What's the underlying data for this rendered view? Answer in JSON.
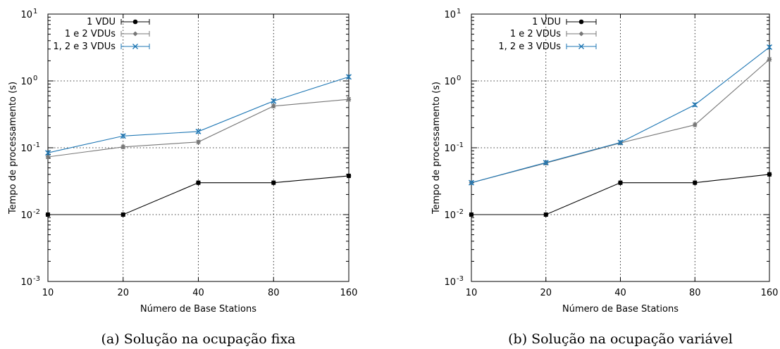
{
  "chart_data": [
    {
      "type": "line",
      "caption": "(a)  Solução na ocupação fixa",
      "xlabel": "Número de Base Stations",
      "ylabel": "Tempo de processamento (s)",
      "x_scale": "categorical",
      "y_scale": "log",
      "ylim": [
        0.001,
        10
      ],
      "grid": true,
      "legend_position": "top-left",
      "categories": [
        "10",
        "20",
        "40",
        "80",
        "160"
      ],
      "y_ticks": [
        {
          "value": 0.001,
          "base": "10",
          "exp": "-3"
        },
        {
          "value": 0.01,
          "base": "10",
          "exp": "-2"
        },
        {
          "value": 0.1,
          "base": "10",
          "exp": "-1"
        },
        {
          "value": 1,
          "base": "10",
          "exp": "0"
        },
        {
          "value": 10,
          "base": "10",
          "exp": "1"
        }
      ],
      "series": [
        {
          "name": "1 VDU",
          "color": "#000000",
          "marker": "circle",
          "values": [
            0.01,
            0.01,
            0.03,
            0.03,
            0.038
          ]
        },
        {
          "name": "1 e 2 VDUs",
          "color": "#777777",
          "marker": "diamond",
          "values": [
            0.073,
            0.103,
            0.122,
            0.42,
            0.53
          ]
        },
        {
          "name": "1, 2 e 3 VDUs",
          "color": "#1f77b4",
          "marker": "x",
          "values": [
            0.084,
            0.15,
            0.175,
            0.5,
            1.15
          ]
        }
      ]
    },
    {
      "type": "line",
      "caption": "(b)  Solução na ocupação variável",
      "xlabel": "Número de Base Stations",
      "ylabel": "Tempo de processamento (s)",
      "x_scale": "categorical",
      "y_scale": "log",
      "ylim": [
        0.001,
        10
      ],
      "grid": true,
      "legend_position": "top-left",
      "categories": [
        "10",
        "20",
        "40",
        "80",
        "160"
      ],
      "y_ticks": [
        {
          "value": 0.001,
          "base": "10",
          "exp": "-3"
        },
        {
          "value": 0.01,
          "base": "10",
          "exp": "-2"
        },
        {
          "value": 0.1,
          "base": "10",
          "exp": "-1"
        },
        {
          "value": 1,
          "base": "10",
          "exp": "0"
        },
        {
          "value": 10,
          "base": "10",
          "exp": "1"
        }
      ],
      "series": [
        {
          "name": "1 VDU",
          "color": "#000000",
          "marker": "circle",
          "values": [
            0.01,
            0.01,
            0.03,
            0.03,
            0.04
          ]
        },
        {
          "name": "1 e 2 VDUs",
          "color": "#777777",
          "marker": "diamond",
          "values": [
            0.03,
            0.059,
            0.118,
            0.22,
            2.1
          ]
        },
        {
          "name": "1, 2 e 3 VDUs",
          "color": "#1f77b4",
          "marker": "x",
          "values": [
            0.03,
            0.06,
            0.12,
            0.44,
            3.2
          ]
        }
      ]
    }
  ]
}
